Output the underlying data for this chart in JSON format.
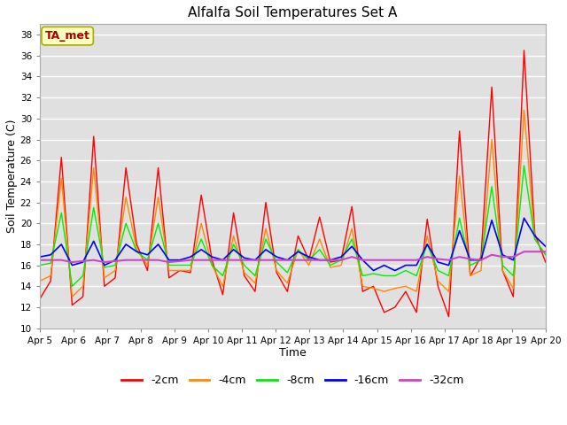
{
  "title": "Alfalfa Soil Temperatures Set A",
  "xlabel": "Time",
  "ylabel": "Soil Temperature (C)",
  "ylim": [
    10,
    39
  ],
  "yticks": [
    10,
    12,
    14,
    16,
    18,
    20,
    22,
    24,
    26,
    28,
    30,
    32,
    34,
    36,
    38
  ],
  "plot_bg_color": "#e0e0e0",
  "fig_bg_color": "#ffffff",
  "annotation_text": "TA_met",
  "annotation_color": "#aa0000",
  "annotation_bg": "#ffffc0",
  "annotation_border": "#aaaa00",
  "series_colors": {
    "-2cm": "#ff0000",
    "-4cm": "#ff8800",
    "-8cm": "#00ee00",
    "-16cm": "#0000ff",
    "-32cm": "#cc44cc"
  },
  "x_labels": [
    "Apr 5",
    "Apr 6",
    "Apr 7",
    "Apr 8",
    "Apr 9",
    "Apr 10",
    "Apr 11",
    "Apr 12",
    "Apr 13",
    "Apr 14",
    "Apr 15",
    "Apr 16",
    "Apr 17",
    "Apr 18",
    "Apr 19",
    "Apr 20"
  ],
  "n_days": 16,
  "data_2cm": [
    12.8,
    14.5,
    26.3,
    12.2,
    13.0,
    28.3,
    14.0,
    14.8,
    25.3,
    18.0,
    15.5,
    25.3,
    14.8,
    15.5,
    15.3,
    22.7,
    16.5,
    13.2,
    21.0,
    15.0,
    13.5,
    22.0,
    15.3,
    13.5,
    18.8,
    16.5,
    20.6,
    16.3,
    16.5,
    21.6,
    13.5,
    14.0,
    11.5,
    12.0,
    13.5,
    11.5,
    20.4,
    14.0,
    11.1,
    28.8,
    15.0,
    16.8,
    33.0,
    15.5,
    13.0,
    36.5,
    19.0,
    16.3
  ],
  "data_4cm": [
    14.5,
    15.0,
    24.3,
    13.0,
    14.0,
    25.3,
    14.8,
    15.5,
    22.5,
    17.5,
    16.0,
    22.5,
    15.5,
    15.5,
    15.5,
    20.0,
    16.0,
    14.0,
    18.8,
    15.3,
    14.3,
    19.5,
    15.5,
    14.3,
    17.5,
    16.0,
    18.5,
    15.8,
    16.0,
    19.5,
    14.0,
    13.8,
    13.5,
    13.8,
    14.0,
    13.5,
    18.8,
    14.5,
    13.5,
    24.5,
    15.0,
    15.5,
    28.0,
    15.5,
    13.8,
    30.8,
    18.5,
    17.0
  ],
  "data_8cm": [
    16.0,
    16.2,
    21.0,
    14.0,
    15.0,
    21.5,
    15.8,
    16.0,
    20.0,
    17.3,
    16.5,
    20.0,
    16.0,
    16.0,
    16.0,
    18.5,
    16.0,
    15.0,
    18.0,
    16.0,
    15.0,
    18.5,
    16.3,
    15.3,
    17.5,
    16.5,
    17.5,
    16.0,
    16.5,
    18.5,
    15.0,
    15.2,
    15.0,
    15.0,
    15.5,
    15.0,
    18.0,
    15.5,
    15.0,
    20.5,
    16.0,
    16.5,
    23.5,
    16.0,
    15.0,
    25.5,
    18.5,
    17.0
  ],
  "data_16cm": [
    16.8,
    17.0,
    18.0,
    16.0,
    16.3,
    18.3,
    16.0,
    16.5,
    18.0,
    17.3,
    17.0,
    18.0,
    16.5,
    16.5,
    16.8,
    17.5,
    16.8,
    16.5,
    17.5,
    16.7,
    16.5,
    17.5,
    16.8,
    16.5,
    17.3,
    16.8,
    16.5,
    16.5,
    16.8,
    17.8,
    16.5,
    15.5,
    16.0,
    15.5,
    16.0,
    16.0,
    18.0,
    16.3,
    16.0,
    19.3,
    16.5,
    16.5,
    20.3,
    17.0,
    16.5,
    20.5,
    18.8,
    17.8
  ],
  "data_32cm": [
    16.5,
    16.5,
    16.5,
    16.3,
    16.4,
    16.5,
    16.3,
    16.4,
    16.5,
    16.5,
    16.5,
    16.5,
    16.3,
    16.4,
    16.5,
    16.5,
    16.5,
    16.5,
    16.5,
    16.5,
    16.5,
    16.5,
    16.5,
    16.5,
    16.5,
    16.5,
    16.5,
    16.5,
    16.5,
    16.8,
    16.5,
    16.5,
    16.5,
    16.5,
    16.5,
    16.5,
    16.8,
    16.6,
    16.5,
    16.8,
    16.6,
    16.5,
    17.0,
    16.8,
    16.8,
    17.3,
    17.3,
    17.3
  ]
}
